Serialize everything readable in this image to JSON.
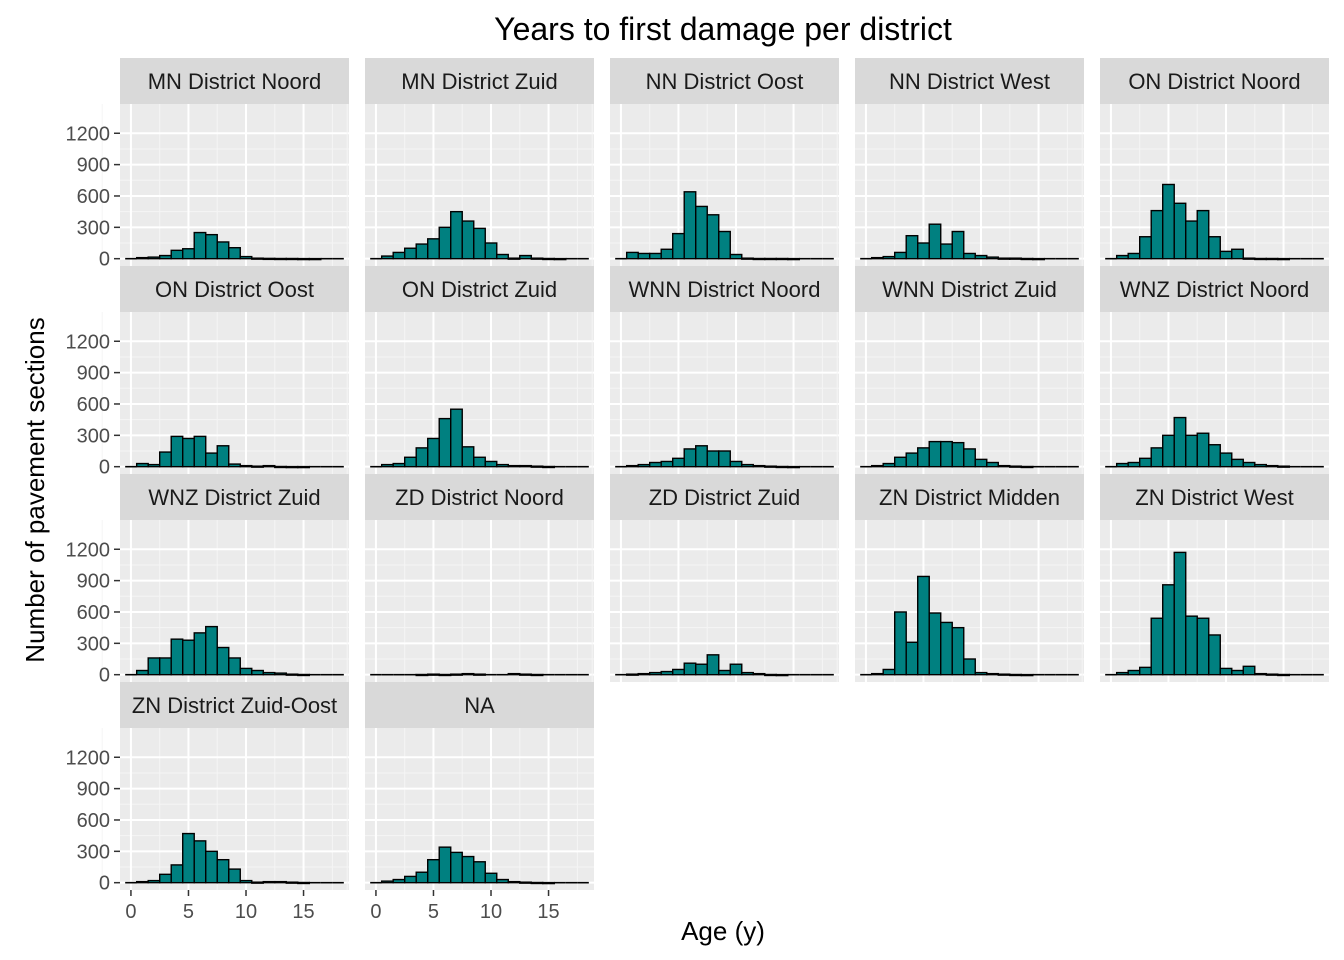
{
  "chart_data": {
    "type": "bar",
    "subtype": "faceted-histogram",
    "title": "Years to first damage per district",
    "xlabel": "Age (y)",
    "ylabel": "Number of pavement sections",
    "bin_width": 1,
    "bin_centers": [
      0,
      1,
      2,
      3,
      4,
      5,
      6,
      7,
      8,
      9,
      10,
      11,
      12,
      13,
      14,
      15,
      16,
      17,
      18
    ],
    "xlim": [
      -0.95,
      18.95
    ],
    "ylim": [
      -70,
      1480
    ],
    "x_ticks": [
      0,
      5,
      10,
      15
    ],
    "y_ticks": [
      0,
      300,
      600,
      900,
      1200
    ],
    "fill_color": "#008080",
    "edge_color": "#000000",
    "panel_background": "#ebebeb",
    "strip_background": "#d9d9d9",
    "grid": true,
    "panels": [
      {
        "name": "MN District Noord",
        "values": [
          0,
          10,
          15,
          30,
          80,
          95,
          250,
          230,
          160,
          105,
          20,
          5,
          3,
          2,
          2,
          1,
          1,
          0,
          0
        ]
      },
      {
        "name": "MN District Zuid",
        "values": [
          0,
          25,
          60,
          100,
          140,
          190,
          300,
          450,
          360,
          290,
          150,
          40,
          5,
          30,
          5,
          2,
          1,
          0,
          0
        ]
      },
      {
        "name": "NN District Oost",
        "values": [
          0,
          60,
          50,
          50,
          90,
          240,
          640,
          500,
          420,
          260,
          40,
          5,
          2,
          2,
          2,
          1,
          0,
          0,
          0
        ]
      },
      {
        "name": "NN District West",
        "values": [
          0,
          10,
          20,
          60,
          220,
          150,
          330,
          140,
          260,
          50,
          30,
          15,
          5,
          5,
          2,
          1,
          0,
          0,
          0
        ]
      },
      {
        "name": "ON District Noord",
        "values": [
          0,
          30,
          50,
          210,
          460,
          710,
          530,
          360,
          460,
          210,
          70,
          90,
          5,
          2,
          2,
          1,
          0,
          0,
          0
        ]
      },
      {
        "name": "ON District Oost",
        "values": [
          0,
          30,
          20,
          140,
          290,
          270,
          290,
          130,
          200,
          25,
          10,
          5,
          10,
          2,
          1,
          1,
          0,
          0,
          0
        ]
      },
      {
        "name": "ON District Zuid",
        "values": [
          0,
          20,
          30,
          90,
          180,
          270,
          460,
          550,
          190,
          90,
          50,
          20,
          10,
          10,
          5,
          2,
          0,
          0,
          0
        ]
      },
      {
        "name": "WNN District Noord",
        "values": [
          0,
          10,
          20,
          40,
          50,
          80,
          170,
          200,
          150,
          150,
          50,
          20,
          10,
          5,
          2,
          1,
          0,
          0,
          0
        ]
      },
      {
        "name": "WNN District Zuid",
        "values": [
          0,
          10,
          30,
          90,
          130,
          180,
          240,
          240,
          230,
          170,
          70,
          40,
          10,
          5,
          2,
          0,
          0,
          0,
          0
        ]
      },
      {
        "name": "WNZ District Noord",
        "values": [
          0,
          30,
          40,
          80,
          180,
          300,
          470,
          300,
          320,
          210,
          130,
          70,
          40,
          20,
          10,
          5,
          0,
          0,
          0
        ]
      },
      {
        "name": "WNZ District Zuid",
        "values": [
          0,
          40,
          160,
          160,
          340,
          330,
          400,
          460,
          260,
          160,
          60,
          40,
          20,
          15,
          5,
          2,
          0,
          0,
          0
        ]
      },
      {
        "name": "ZD District Noord",
        "values": [
          0,
          0,
          0,
          0,
          2,
          5,
          2,
          5,
          10,
          5,
          0,
          0,
          10,
          5,
          2,
          0,
          0,
          0,
          0
        ]
      },
      {
        "name": "ZD District Zuid",
        "values": [
          0,
          5,
          10,
          20,
          30,
          50,
          110,
          100,
          190,
          40,
          100,
          20,
          10,
          2,
          1,
          0,
          0,
          0,
          0
        ]
      },
      {
        "name": "ZN District Midden",
        "values": [
          0,
          10,
          50,
          600,
          310,
          940,
          590,
          500,
          450,
          150,
          20,
          10,
          5,
          2,
          1,
          0,
          0,
          0,
          0
        ]
      },
      {
        "name": "ZN District West",
        "values": [
          0,
          20,
          40,
          70,
          540,
          860,
          1170,
          560,
          540,
          380,
          60,
          40,
          80,
          10,
          5,
          2,
          0,
          0,
          0
        ]
      },
      {
        "name": "ZN District Zuid-Oost",
        "values": [
          0,
          10,
          20,
          80,
          170,
          470,
          400,
          300,
          220,
          130,
          20,
          5,
          10,
          10,
          5,
          2,
          0,
          0,
          0
        ]
      },
      {
        "name": "NA",
        "values": [
          0,
          15,
          30,
          60,
          100,
          220,
          340,
          290,
          250,
          200,
          90,
          30,
          10,
          5,
          2,
          1,
          0,
          0,
          0
        ]
      }
    ]
  }
}
